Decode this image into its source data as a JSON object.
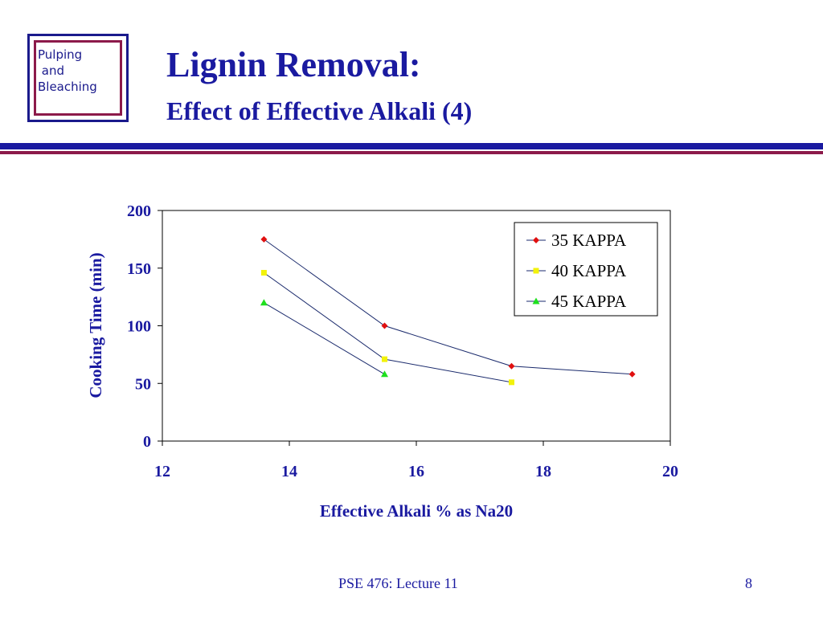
{
  "logo": {
    "line1": "Pulping",
    "line2": "and",
    "line3": "Bleaching"
  },
  "slide": {
    "title": "Lignin Removal:",
    "subtitle": "Effect of Effective Alkali (4)"
  },
  "footer": {
    "course": "PSE 476: Lecture 11",
    "page": "8"
  },
  "colors": {
    "text": "#1a1aa0",
    "accent": "#8c1a4a",
    "line": "#1a2a6c"
  },
  "chart_data": {
    "type": "line",
    "title": "",
    "xlabel": "Effective Alkali % as Na20",
    "ylabel": "Cooking Time (min)",
    "xlim": [
      12,
      20
    ],
    "ylim": [
      0,
      200
    ],
    "xticks": [
      12,
      14,
      16,
      18,
      20
    ],
    "yticks": [
      0,
      50,
      100,
      150,
      200
    ],
    "grid": false,
    "legend": "top-right",
    "series": [
      {
        "name": "35 KAPPA",
        "marker": "diamond",
        "color": "#e01010",
        "x": [
          13.6,
          15.5,
          17.5,
          19.4
        ],
        "y": [
          175,
          100,
          65,
          58
        ]
      },
      {
        "name": "40 KAPPA",
        "marker": "square",
        "color": "#f2f20a",
        "x": [
          13.6,
          15.5,
          17.5
        ],
        "y": [
          146,
          71,
          51
        ]
      },
      {
        "name": "45 KAPPA",
        "marker": "triangle",
        "color": "#1ee01e",
        "x": [
          13.6,
          15.5
        ],
        "y": [
          120,
          58
        ]
      }
    ]
  }
}
